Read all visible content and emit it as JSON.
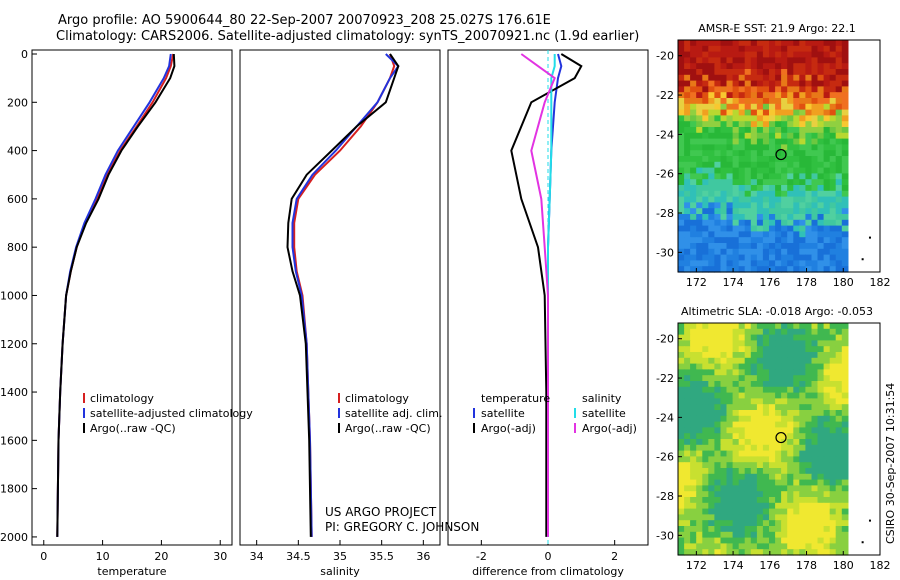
{
  "header": {
    "line1": "Argo profile: AO 5900644_80 22-Sep-2007 20070923_208 25.027S 176.61E",
    "line2": "Climatology: CARS2006. Satellite-adjusted climatology: synTS_20070921.nc (1.9d earlier)"
  },
  "project": {
    "line1": "US ARGO PROJECT",
    "line2": "PI: GREGORY C. JOHNSON"
  },
  "stamp": "CSIRO 30-Sep-2007 10:31:54",
  "colors": {
    "red": "#d62020",
    "blue": "#2233dd",
    "black": "#000000",
    "cyan": "#22dde8",
    "magenta": "#e233e2"
  },
  "chart_data": [
    {
      "type": "line",
      "id": "temperature",
      "xlabel": "temperature",
      "xlim": [
        -2,
        32
      ],
      "xticks": [
        0,
        10,
        20,
        30
      ],
      "ylim": [
        2050,
        0
      ],
      "yticks": [
        0,
        200,
        400,
        600,
        800,
        1000,
        1200,
        1400,
        1600,
        1800,
        2000
      ],
      "legend": [
        "climatology",
        "satellite-adjusted climatology",
        "Argo(..raw -QC)"
      ],
      "series": [
        {
          "name": "climatology",
          "color": "red",
          "x": [
            22.0,
            21.6,
            20.8,
            18.5,
            15.8,
            13.0,
            10.8,
            9.0,
            7.0,
            5.6,
            4.6,
            3.8,
            3.2,
            2.8,
            2.5,
            2.3
          ],
          "y": [
            0,
            50,
            100,
            200,
            300,
            400,
            500,
            600,
            700,
            800,
            900,
            1000,
            1200,
            1400,
            1600,
            2000
          ]
        },
        {
          "name": "satellite-adjusted climatology",
          "color": "blue",
          "x": [
            21.6,
            21.3,
            20.4,
            18.0,
            15.3,
            12.6,
            10.5,
            8.8,
            6.9,
            5.5,
            4.5,
            3.8,
            3.2,
            2.8,
            2.5,
            2.3
          ],
          "y": [
            0,
            50,
            100,
            200,
            300,
            400,
            500,
            600,
            700,
            800,
            900,
            1000,
            1200,
            1400,
            1600,
            2000
          ]
        },
        {
          "name": "Argo(..raw -QC)",
          "color": "black",
          "x": [
            22.1,
            22.2,
            21.5,
            19.0,
            16.0,
            13.2,
            11.0,
            9.3,
            7.2,
            5.6,
            4.6,
            3.8,
            3.2,
            2.8,
            2.5,
            2.3
          ],
          "y": [
            0,
            50,
            100,
            200,
            300,
            400,
            500,
            600,
            700,
            800,
            900,
            1000,
            1200,
            1400,
            1600,
            2000
          ]
        }
      ]
    },
    {
      "type": "line",
      "id": "salinity",
      "xlabel": "salinity",
      "xlim": [
        33.8,
        36.2
      ],
      "xticks": [
        34,
        34.5,
        35,
        35.5,
        36
      ],
      "ylim": [
        2050,
        0
      ],
      "legend": [
        "climatology",
        "satellite adj. clim.",
        "Argo(..raw -QC)"
      ],
      "series": [
        {
          "name": "climatology",
          "color": "red",
          "x": [
            35.6,
            35.65,
            35.6,
            35.45,
            35.25,
            35.0,
            34.7,
            34.5,
            34.45,
            34.45,
            34.48,
            34.55,
            34.6,
            34.62,
            34.64,
            34.66
          ],
          "y": [
            0,
            50,
            100,
            200,
            300,
            400,
            500,
            600,
            700,
            800,
            900,
            1000,
            1200,
            1400,
            1600,
            2000
          ]
        },
        {
          "name": "satellite adj. clim.",
          "color": "blue",
          "x": [
            35.55,
            35.7,
            35.6,
            35.45,
            35.2,
            34.95,
            34.67,
            34.48,
            34.43,
            34.43,
            34.47,
            34.54,
            34.6,
            34.62,
            34.64,
            34.66
          ],
          "y": [
            0,
            50,
            100,
            200,
            300,
            400,
            500,
            600,
            700,
            800,
            900,
            1000,
            1200,
            1400,
            1600,
            2000
          ]
        },
        {
          "name": "Argo(..raw -QC)",
          "color": "black",
          "x": [
            35.6,
            35.7,
            35.65,
            35.55,
            35.2,
            34.9,
            34.6,
            34.42,
            34.38,
            34.37,
            34.43,
            34.52,
            34.59,
            34.61,
            34.63,
            34.65
          ],
          "y": [
            0,
            50,
            100,
            200,
            300,
            400,
            500,
            600,
            700,
            800,
            900,
            1000,
            1200,
            1400,
            1600,
            2000
          ]
        }
      ]
    },
    {
      "type": "line",
      "id": "difference",
      "xlabel": "difference from climatology",
      "xlim": [
        -3,
        3
      ],
      "xticks": [
        -2,
        0,
        2
      ],
      "ylim": [
        2050,
        0
      ],
      "legend_temperature_heading": "temperature",
      "legend_salinity_heading": "salinity",
      "legend_temperature": [
        "satellite",
        "Argo(-adj)"
      ],
      "legend_salinity": [
        "satellite",
        "Argo(-adj)"
      ],
      "series": [
        {
          "name": "temperature satellite",
          "color": "blue",
          "x": [
            0.3,
            0.4,
            0.3,
            0.2,
            0.1,
            0.05,
            0.0,
            0.0,
            0.0,
            0.0,
            0.0
          ],
          "y": [
            0,
            50,
            100,
            200,
            400,
            600,
            800,
            1000,
            1400,
            1800,
            2000
          ]
        },
        {
          "name": "temperature Argo(-adj)",
          "color": "black",
          "x": [
            0.4,
            1.0,
            0.8,
            -0.5,
            -1.1,
            -0.8,
            -0.3,
            -0.1,
            -0.05,
            -0.05,
            -0.05
          ],
          "y": [
            0,
            50,
            100,
            200,
            400,
            600,
            800,
            1000,
            1400,
            1800,
            2000
          ]
        },
        {
          "name": "salinity satellite",
          "color": "cyan",
          "x": [
            0.2,
            0.2,
            0.1,
            0.1,
            0.1,
            0.05,
            0.0,
            0.0,
            0.0,
            0.0,
            0.0
          ],
          "y": [
            0,
            50,
            100,
            200,
            400,
            600,
            800,
            1000,
            1400,
            1800,
            2000
          ]
        },
        {
          "name": "salinity Argo(-adj)",
          "color": "magenta",
          "x": [
            -0.8,
            -0.3,
            0.2,
            -0.1,
            -0.5,
            -0.2,
            -0.1,
            0.0,
            0.0,
            0.0,
            0.0
          ],
          "y": [
            0,
            50,
            100,
            200,
            400,
            600,
            800,
            1000,
            1400,
            1800,
            2000
          ]
        }
      ]
    },
    {
      "type": "heatmap",
      "id": "sst-map",
      "title": "AMSR-E SST: 21.9 Argo: 22.1",
      "xlim": [
        171,
        182
      ],
      "ylim": [
        -31,
        -19.2
      ],
      "xticks": [
        172,
        174,
        176,
        178,
        180,
        182
      ],
      "yticks": [
        -20,
        -22,
        -24,
        -26,
        -28,
        -30
      ],
      "float": [
        176.61,
        -25.027
      ]
    },
    {
      "type": "heatmap",
      "id": "sla-map",
      "title": "Altimetric SLA: -0.018 Argo: -0.053",
      "xlim": [
        171,
        182
      ],
      "ylim": [
        -31,
        -19.2
      ],
      "xticks": [
        172,
        174,
        176,
        178,
        180,
        182
      ],
      "yticks": [
        -20,
        -22,
        -24,
        -26,
        -28,
        -30
      ],
      "float": [
        176.61,
        -25.027
      ]
    }
  ]
}
